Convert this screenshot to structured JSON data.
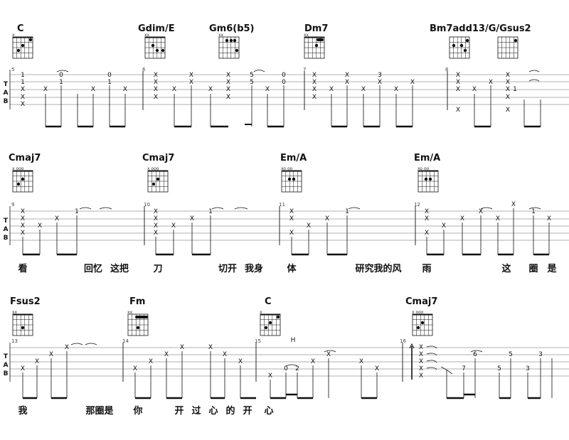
{
  "header_text": "",
  "tab_clef": [
    "T",
    "A",
    "B"
  ],
  "systems": [
    {
      "chords": [
        {
          "name": "Cmaj7",
          "muted": "x   ooo"
        },
        {
          "name": "Cmaj7",
          "muted": "x   ooo"
        },
        {
          "name": "Em/A",
          "muted": "xo   oo"
        },
        {
          "name": "Em/A",
          "muted": "xo   oo"
        }
      ],
      "bars": [
        "9",
        "10",
        "11",
        "12"
      ],
      "lyrics": [
        "看",
        "回忆",
        "这把",
        "刀",
        "切开",
        "我身",
        "体",
        "研究我的风",
        "雨",
        "这",
        "圈",
        "是"
      ]
    },
    {
      "chords": [
        {
          "name": "Fsus2",
          "muted": "xx"
        },
        {
          "name": "Fm",
          "muted": "xx"
        },
        {
          "name": "C",
          "muted": "x"
        },
        {
          "name": "Cmaj7",
          "muted": "x   ooo"
        }
      ],
      "bars": [
        "13",
        "14",
        "15",
        "16"
      ],
      "lyrics": [
        "我",
        "那圈是",
        "你",
        "开",
        "过",
        "心",
        "的",
        "开",
        "心"
      ],
      "annotations": [
        "H"
      ]
    }
  ],
  "top_system": {
    "chords": [
      {
        "name": "C",
        "muted": "x"
      },
      {
        "name": "Gdim/E",
        "muted": "xx"
      },
      {
        "name": "Gm6(b5)",
        "muted": "xx"
      },
      {
        "name": "Dm7",
        "muted": "xx"
      },
      {
        "name": "Bm7add13/G",
        "muted": ""
      },
      {
        "name": "Gsus2",
        "muted": ""
      }
    ],
    "bars": [
      "5",
      "6",
      "7",
      "8"
    ]
  },
  "tab_numbers": {
    "s1": [
      "0",
      "1",
      "0",
      "1",
      "5",
      "5",
      "0",
      "0",
      "3",
      "1"
    ],
    "s2": [
      "1",
      "1",
      "1",
      "1"
    ],
    "s3": [
      "0",
      "2",
      "6",
      "7",
      "5",
      "5",
      "3",
      "3"
    ]
  }
}
